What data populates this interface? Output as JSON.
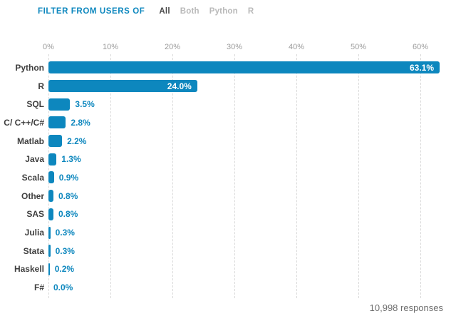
{
  "filter": {
    "label": "FILTER FROM USERS OF",
    "options": [
      {
        "label": "All",
        "active": true
      },
      {
        "label": "Both",
        "active": false
      },
      {
        "label": "Python",
        "active": false
      },
      {
        "label": "R",
        "active": false
      }
    ]
  },
  "chart_data": {
    "type": "bar",
    "orientation": "horizontal",
    "title": "",
    "xlabel": "",
    "ylabel": "",
    "categories": [
      "Python",
      "R",
      "SQL",
      "C/ C++/C#",
      "Matlab",
      "Java",
      "Scala",
      "Other",
      "SAS",
      "Julia",
      "Stata",
      "Haskell",
      "F#"
    ],
    "values": [
      63.1,
      24.0,
      3.5,
      2.8,
      2.2,
      1.3,
      0.9,
      0.8,
      0.8,
      0.3,
      0.3,
      0.2,
      0.0
    ],
    "value_labels": [
      "63.1%",
      "24.0%",
      "3.5%",
      "2.8%",
      "2.2%",
      "1.3%",
      "0.9%",
      "0.8%",
      "0.8%",
      "0.3%",
      "0.3%",
      "0.2%",
      "0.0%"
    ],
    "x_ticks": [
      "0%",
      "10%",
      "20%",
      "30%",
      "40%",
      "50%",
      "60%"
    ],
    "x_tick_values": [
      0,
      10,
      20,
      30,
      40,
      50,
      60
    ],
    "xlim": [
      0,
      64
    ],
    "grid": "vertical-dashed",
    "legend": "none",
    "bar_color": "#0d87be",
    "inside_label_color": "#ffffff",
    "outside_label_color": "#0d87be"
  },
  "footer": {
    "responses": "10,998 responses"
  }
}
